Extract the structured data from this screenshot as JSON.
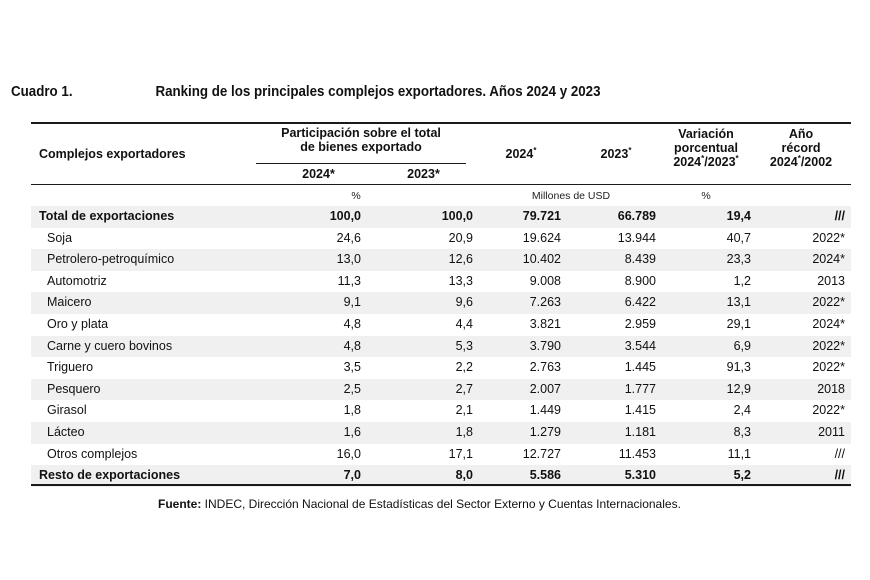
{
  "caption": {
    "number": "Cuadro 1.",
    "title": "Ranking de los principales complejos exportadores. Años 2024 y 2023"
  },
  "header": {
    "col_complejos": "Complejos exportadores",
    "participacion_line1": "Participación sobre el total",
    "participacion_line2": "de bienes exportado",
    "p2024": "2024*",
    "p2023": "2023*",
    "e2024": "2024",
    "e2023": "2023",
    "e_sup": "*",
    "variacion_line1": "Variación",
    "variacion_line2": "porcentual",
    "variacion_line3_a": "2024",
    "variacion_line3_b": "/2023",
    "ano_line1": "Año",
    "ano_line2": "récord",
    "ano_line3_a": "2024",
    "ano_line3_b": "/2002"
  },
  "units": {
    "pct": "%",
    "musd": "Millones de USD",
    "var_pct": "%"
  },
  "rows": [
    {
      "name": "Total de exportaciones",
      "p24": "100,0",
      "p23": "100,0",
      "e24": "79.721",
      "e23": "66.789",
      "var": "19,4",
      "rec": "///",
      "style": "bold"
    },
    {
      "name": "Soja",
      "p24": "24,6",
      "p23": "20,9",
      "e24": "19.624",
      "e23": "13.944",
      "var": "40,7",
      "rec": "2022*",
      "style": "sub"
    },
    {
      "name": "Petrolero-petroquímico",
      "p24": "13,0",
      "p23": "12,6",
      "e24": "10.402",
      "e23": "8.439",
      "var": "23,3",
      "rec": "2024*",
      "style": "sub"
    },
    {
      "name": "Automotriz",
      "p24": "11,3",
      "p23": "13,3",
      "e24": "9.008",
      "e23": "8.900",
      "var": "1,2",
      "rec": "2013",
      "style": "sub"
    },
    {
      "name": "Maicero",
      "p24": "9,1",
      "p23": "9,6",
      "e24": "7.263",
      "e23": "6.422",
      "var": "13,1",
      "rec": "2022*",
      "style": "sub"
    },
    {
      "name": "Oro y plata",
      "p24": "4,8",
      "p23": "4,4",
      "e24": "3.821",
      "e23": "2.959",
      "var": "29,1",
      "rec": "2024*",
      "style": "sub"
    },
    {
      "name": "Carne y cuero bovinos",
      "p24": "4,8",
      "p23": "5,3",
      "e24": "3.790",
      "e23": "3.544",
      "var": "6,9",
      "rec": "2022*",
      "style": "sub"
    },
    {
      "name": "Triguero",
      "p24": "3,5",
      "p23": "2,2",
      "e24": "2.763",
      "e23": "1.445",
      "var": "91,3",
      "rec": "2022*",
      "style": "sub"
    },
    {
      "name": "Pesquero",
      "p24": "2,5",
      "p23": "2,7",
      "e24": "2.007",
      "e23": "1.777",
      "var": "12,9",
      "rec": "2018",
      "style": "sub"
    },
    {
      "name": "Girasol",
      "p24": "1,8",
      "p23": "2,1",
      "e24": "1.449",
      "e23": "1.415",
      "var": "2,4",
      "rec": "2022*",
      "style": "sub"
    },
    {
      "name": "Lácteo",
      "p24": "1,6",
      "p23": "1,8",
      "e24": "1.279",
      "e23": "1.181",
      "var": "8,3",
      "rec": "2011",
      "style": "sub"
    },
    {
      "name": "Otros complejos",
      "p24": "16,0",
      "p23": "17,1",
      "e24": "12.727",
      "e23": "11.453",
      "var": "11,1",
      "rec": "///",
      "style": "sub"
    },
    {
      "name": "Resto de exportaciones",
      "p24": "7,0",
      "p23": "8,0",
      "e24": "5.586",
      "e23": "5.310",
      "var": "5,2",
      "rec": "///",
      "style": "bold"
    }
  ],
  "source": {
    "label": "Fuente:",
    "text": " INDEC, Dirección Nacional de Estadísticas del Sector Externo y Cuentas Internacionales."
  }
}
